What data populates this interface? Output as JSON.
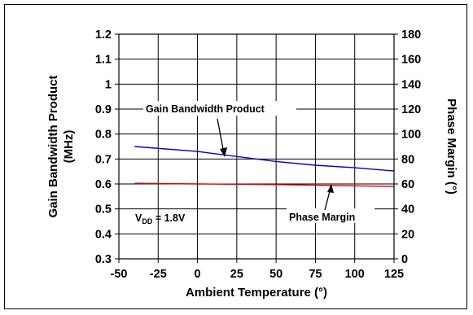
{
  "chart_data": {
    "type": "line",
    "x": [
      -40,
      125
    ],
    "x_ticks": [
      "-50",
      "-25",
      "0",
      "25",
      "50",
      "75",
      "100",
      "125"
    ],
    "x_tick_values": [
      -50,
      -25,
      0,
      25,
      50,
      75,
      100,
      125
    ],
    "xlim": [
      -50,
      125
    ],
    "xlabel": "Ambient Temperature (°)",
    "ylabel_left_line1": "Gain Bandwidth Product",
    "ylabel_left_line2": "(MHz)",
    "ylim_left": [
      0.3,
      1.2
    ],
    "y_left_ticks": [
      "0.3",
      "0.4",
      "0.5",
      "0.6",
      "0.7",
      "0.8",
      "0.9",
      "1",
      "1.1",
      "1.2"
    ],
    "y_left_tick_values": [
      0.3,
      0.4,
      0.5,
      0.6,
      0.7,
      0.8,
      0.9,
      1.0,
      1.1,
      1.2
    ],
    "ylabel_right": "Phase Margin (°)",
    "ylim_right": [
      0,
      180
    ],
    "y_right_ticks": [
      "0",
      "20",
      "40",
      "60",
      "80",
      "100",
      "120",
      "140",
      "160",
      "180"
    ],
    "y_right_tick_values": [
      0,
      20,
      40,
      60,
      80,
      100,
      120,
      140,
      160,
      180
    ],
    "grid": true,
    "series": [
      {
        "name": "Gain Bandwidth Product",
        "axis": "left",
        "color": "#0000cc",
        "points": [
          [
            -40,
            0.75
          ],
          [
            0,
            0.73
          ],
          [
            25,
            0.71
          ],
          [
            50,
            0.69
          ],
          [
            75,
            0.675
          ],
          [
            100,
            0.665
          ],
          [
            125,
            0.652
          ]
        ]
      },
      {
        "name": "Phase Margin",
        "axis": "right",
        "color": "#dd0000",
        "points": [
          [
            -40,
            60.5
          ],
          [
            0,
            60.0
          ],
          [
            50,
            59.5
          ],
          [
            100,
            58.5
          ],
          [
            125,
            58.0
          ]
        ]
      }
    ],
    "annotations": {
      "gbw_label": "Gain Bandwidth Product",
      "pm_label": "Phase Margin",
      "vdd_main": "V",
      "vdd_sub": "DD",
      "vdd_value": " = 1.8V"
    }
  }
}
